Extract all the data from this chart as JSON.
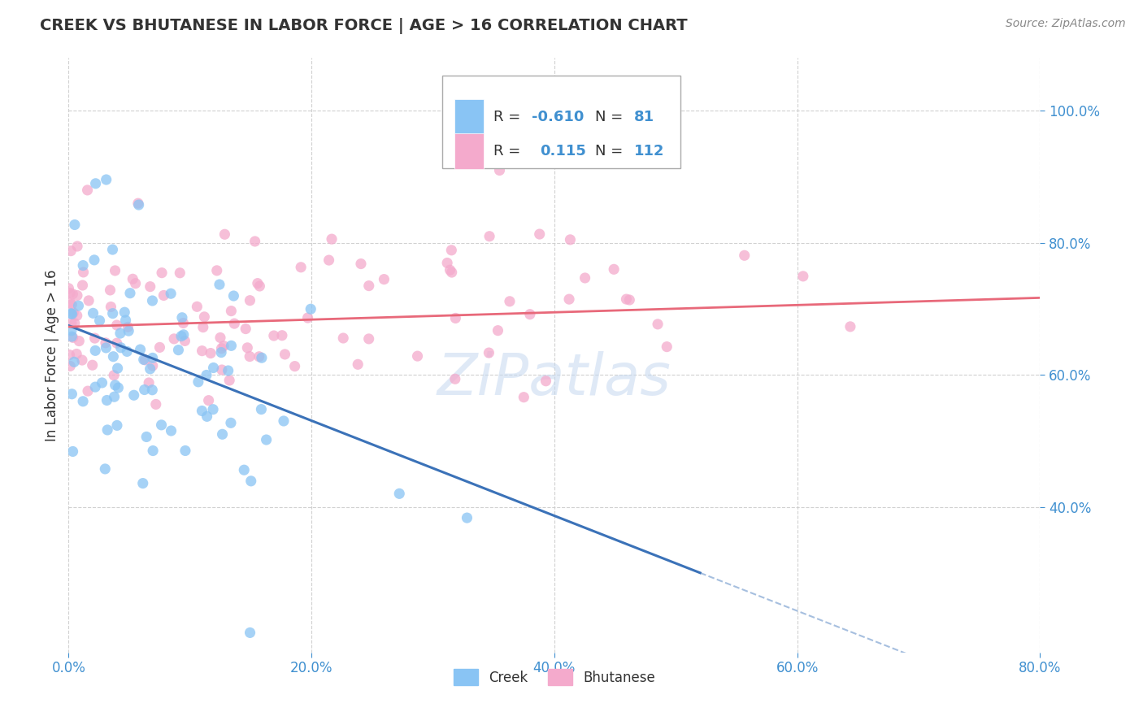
{
  "title": "CREEK VS BHUTANESE IN LABOR FORCE | AGE > 16 CORRELATION CHART",
  "source_text": "Source: ZipAtlas.com",
  "ylabel": "In Labor Force | Age > 16",
  "xlim": [
    0.0,
    0.8
  ],
  "ylim": [
    0.18,
    1.08
  ],
  "xtick_labels": [
    "0.0%",
    "20.0%",
    "40.0%",
    "60.0%",
    "80.0%"
  ],
  "xtick_vals": [
    0.0,
    0.2,
    0.4,
    0.6,
    0.8
  ],
  "ytick_labels": [
    "40.0%",
    "60.0%",
    "80.0%",
    "100.0%"
  ],
  "ytick_vals": [
    0.4,
    0.6,
    0.8,
    1.0
  ],
  "creek_color": "#89C4F4",
  "bhutanese_color": "#F4AACC",
  "creek_line_color": "#3B72B8",
  "bhutanese_line_color": "#E8697A",
  "creek_R": -0.61,
  "creek_N": 81,
  "bhutanese_R": 0.115,
  "bhutanese_N": 112,
  "watermark": "ZiPatlas",
  "background_color": "#FFFFFF",
  "grid_color": "#CCCCCC",
  "title_color": "#333333",
  "source_color": "#888888",
  "tick_color": "#4090D0",
  "ylabel_color": "#333333"
}
